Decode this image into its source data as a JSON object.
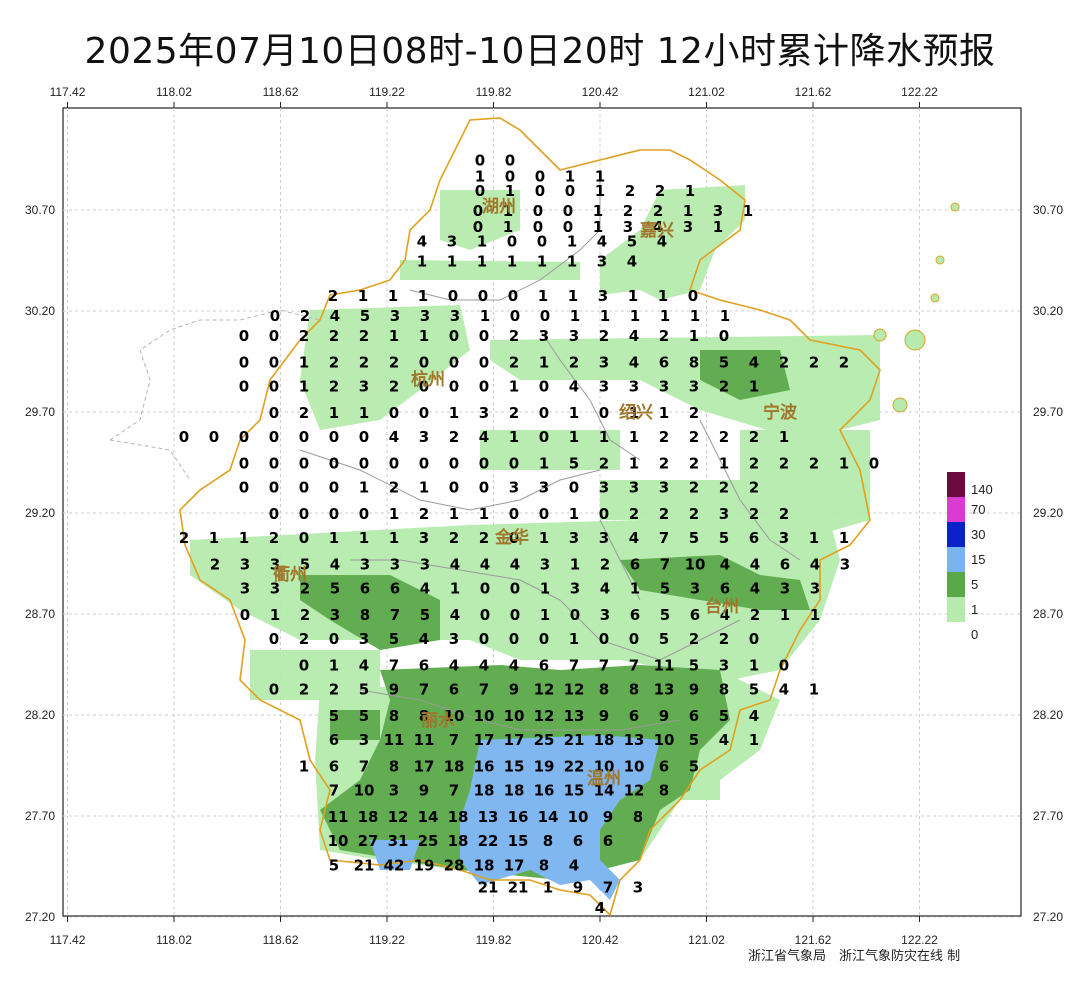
{
  "title": "2025年07月10日08时-10日20时 12小时累计降水预报",
  "x_ticks": [
    "117.42",
    "118.02",
    "118.62",
    "119.22",
    "119.82",
    "120.42",
    "121.02",
    "121.62",
    "122.22"
  ],
  "y_ticks": [
    "30.70",
    "30.20",
    "29.70",
    "29.20",
    "28.70",
    "28.20",
    "27.70",
    "27.20"
  ],
  "cities": [
    "湖州",
    "嘉兴",
    "杭州",
    "绍兴",
    "宁波",
    "金华",
    "衢州",
    "台州",
    "丽水",
    "温州"
  ],
  "legend": {
    "levels": [
      "140",
      "70",
      "30",
      "15",
      "5",
      "1",
      "0"
    ],
    "colors": [
      "#6b0a3e",
      "#d93bd3",
      "#0a22c9",
      "#7ab4f0",
      "#5aa948",
      "#b6ebad",
      "#ffffff"
    ]
  },
  "grid_values": [
    {
      "row": "30.95",
      "values": [
        "0",
        "0"
      ]
    },
    {
      "row": "30.87",
      "values": [
        "1",
        "0",
        "0",
        "1",
        "1"
      ]
    },
    {
      "row": "30.80",
      "values": [
        "0",
        "1",
        "0",
        "0",
        "1",
        "2",
        "2",
        "1"
      ]
    },
    {
      "row": "30.70",
      "values": [
        "0",
        "1",
        "0",
        "0",
        "1",
        "2",
        "2",
        "1",
        "3",
        "1"
      ]
    },
    {
      "row": "30.62",
      "values": [
        "0",
        "1",
        "0",
        "0",
        "1",
        "3",
        "4",
        "3",
        "1"
      ]
    },
    {
      "row": "30.55",
      "values": [
        "4",
        "3",
        "1",
        "0",
        "0",
        "1",
        "4",
        "5",
        "4"
      ]
    },
    {
      "row": "30.45",
      "values": [
        "1",
        "1",
        "1",
        "1",
        "1",
        "1",
        "3",
        "4"
      ]
    },
    {
      "row": "30.28",
      "values": [
        "2",
        "1",
        "1",
        "1",
        "0",
        "0",
        "0",
        "1",
        "1",
        "3",
        "1",
        "1",
        "0"
      ]
    },
    {
      "row": "30.18",
      "values": [
        "0",
        "2",
        "4",
        "5",
        "3",
        "3",
        "3",
        "1",
        "0",
        "0",
        "1",
        "1",
        "1",
        "1",
        "1",
        "1"
      ]
    },
    {
      "row": "30.08",
      "values": [
        "0",
        "0",
        "2",
        "2",
        "2",
        "1",
        "1",
        "0",
        "0",
        "2",
        "3",
        "3",
        "2",
        "4",
        "2",
        "1",
        "0"
      ]
    },
    {
      "row": "29.95",
      "values": [
        "0",
        "0",
        "1",
        "2",
        "2",
        "2",
        "0",
        "0",
        "0",
        "2",
        "1",
        "2",
        "3",
        "4",
        "6",
        "8",
        "5",
        "4",
        "2",
        "2",
        "2"
      ]
    },
    {
      "row": "29.83",
      "values": [
        "0",
        "0",
        "1",
        "2",
        "3",
        "2",
        "0",
        "0",
        "0",
        "1",
        "0",
        "4",
        "3",
        "3",
        "3",
        "3",
        "2",
        "1"
      ]
    },
    {
      "row": "29.70",
      "values": [
        "0",
        "2",
        "1",
        "1",
        "0",
        "0",
        "1",
        "3",
        "2",
        "0",
        "1",
        "0",
        "1",
        "1",
        "2"
      ]
    },
    {
      "row": "29.58",
      "values": [
        "0",
        "0",
        "0",
        "0",
        "0",
        "0",
        "0",
        "4",
        "3",
        "2",
        "4",
        "1",
        "0",
        "1",
        "1",
        "1",
        "2",
        "2",
        "2",
        "2",
        "1"
      ]
    },
    {
      "row": "29.45",
      "values": [
        "0",
        "0",
        "0",
        "0",
        "0",
        "0",
        "0",
        "0",
        "0",
        "0",
        "1",
        "5",
        "2",
        "1",
        "2",
        "2",
        "1",
        "2",
        "2",
        "2",
        "1",
        "0"
      ]
    },
    {
      "row": "29.33",
      "values": [
        "0",
        "0",
        "0",
        "0",
        "1",
        "2",
        "1",
        "0",
        "0",
        "3",
        "3",
        "0",
        "3",
        "3",
        "3",
        "2",
        "2",
        "2"
      ]
    },
    {
      "row": "29.20",
      "values": [
        "0",
        "0",
        "0",
        "0",
        "1",
        "2",
        "1",
        "1",
        "0",
        "0",
        "1",
        "0",
        "2",
        "2",
        "2",
        "3",
        "2",
        "2"
      ]
    },
    {
      "row": "29.08",
      "values": [
        "2",
        "1",
        "1",
        "2",
        "0",
        "1",
        "1",
        "1",
        "3",
        "2",
        "2",
        "0",
        "1",
        "3",
        "3",
        "4",
        "7",
        "5",
        "5",
        "6",
        "3",
        "1",
        "1"
      ]
    },
    {
      "row": "28.95",
      "values": [
        "2",
        "3",
        "3",
        "5",
        "4",
        "3",
        "3",
        "3",
        "4",
        "4",
        "4",
        "3",
        "1",
        "2",
        "6",
        "7",
        "10",
        "4",
        "4",
        "6",
        "4",
        "3"
      ]
    },
    {
      "row": "28.83",
      "values": [
        "3",
        "3",
        "2",
        "5",
        "6",
        "6",
        "4",
        "1",
        "0",
        "0",
        "1",
        "3",
        "4",
        "1",
        "5",
        "3",
        "6",
        "4",
        "3",
        "3"
      ]
    },
    {
      "row": "28.70",
      "values": [
        "0",
        "1",
        "2",
        "3",
        "8",
        "7",
        "5",
        "4",
        "0",
        "0",
        "1",
        "0",
        "3",
        "6",
        "5",
        "6",
        "4",
        "2",
        "1",
        "1"
      ]
    },
    {
      "row": "28.58",
      "values": [
        "0",
        "2",
        "0",
        "3",
        "5",
        "4",
        "3",
        "0",
        "0",
        "0",
        "1",
        "0",
        "0",
        "5",
        "2",
        "2",
        "0"
      ]
    },
    {
      "row": "28.45",
      "values": [
        "0",
        "1",
        "4",
        "7",
        "6",
        "4",
        "4",
        "4",
        "6",
        "7",
        "7",
        "7",
        "11",
        "5",
        "3",
        "1",
        "0"
      ]
    },
    {
      "row": "28.33",
      "values": [
        "0",
        "2",
        "2",
        "5",
        "9",
        "7",
        "6",
        "7",
        "9",
        "12",
        "12",
        "8",
        "8",
        "13",
        "9",
        "8",
        "5",
        "4",
        "1"
      ]
    },
    {
      "row": "28.20",
      "values": [
        "5",
        "5",
        "8",
        "8",
        "10",
        "10",
        "10",
        "12",
        "13",
        "9",
        "6",
        "9",
        "6",
        "5",
        "4"
      ]
    },
    {
      "row": "28.08",
      "values": [
        "6",
        "3",
        "11",
        "11",
        "7",
        "17",
        "17",
        "25",
        "21",
        "18",
        "13",
        "10",
        "5",
        "4",
        "1"
      ]
    },
    {
      "row": "27.95",
      "values": [
        "1",
        "6",
        "7",
        "8",
        "17",
        "18",
        "16",
        "15",
        "19",
        "22",
        "10",
        "10",
        "6",
        "5"
      ]
    },
    {
      "row": "27.83",
      "values": [
        "7",
        "10",
        "3",
        "9",
        "7",
        "18",
        "18",
        "16",
        "15",
        "14",
        "12",
        "8"
      ]
    },
    {
      "row": "27.70",
      "values": [
        "11",
        "18",
        "12",
        "14",
        "18",
        "13",
        "16",
        "14",
        "10",
        "9",
        "8"
      ]
    },
    {
      "row": "27.58",
      "values": [
        "10",
        "27",
        "31",
        "25",
        "18",
        "22",
        "15",
        "8",
        "6",
        "6"
      ]
    },
    {
      "row": "27.46",
      "values": [
        "5",
        "21",
        "42",
        "19",
        "28",
        "18",
        "17",
        "8",
        "4"
      ]
    },
    {
      "row": "27.35",
      "values": [
        "21",
        "21",
        "1",
        "9",
        "7",
        "3"
      ]
    },
    {
      "row": "27.25",
      "values": [
        "4"
      ]
    }
  ],
  "credit": "浙江省气象局　浙江气象防灾在线 制"
}
